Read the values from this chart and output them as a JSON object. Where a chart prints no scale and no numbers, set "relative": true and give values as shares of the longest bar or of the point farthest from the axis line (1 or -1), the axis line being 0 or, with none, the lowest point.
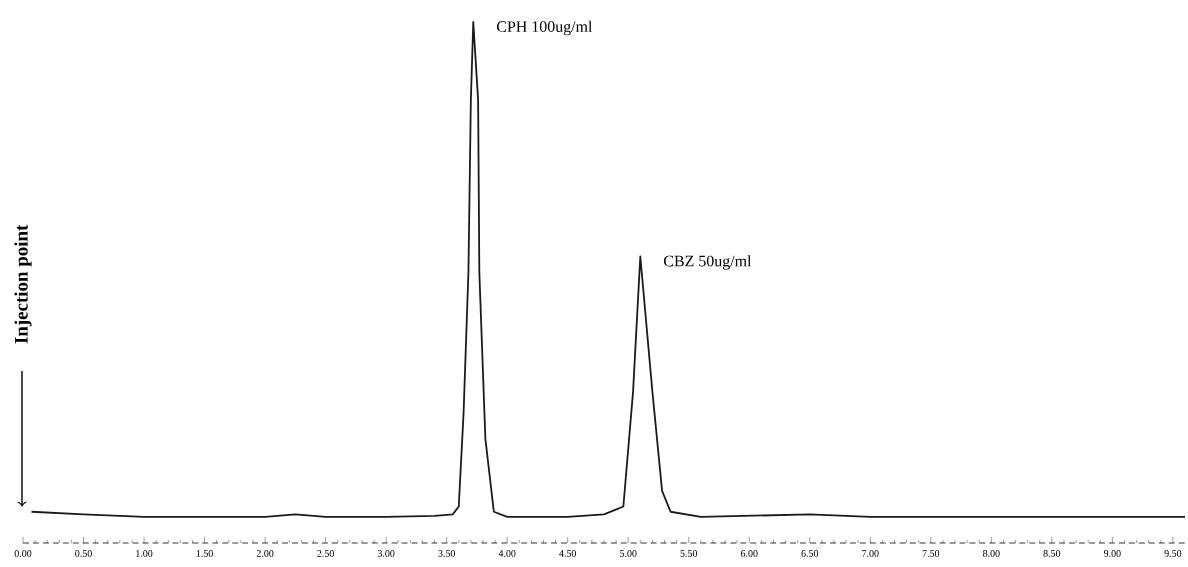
{
  "chart_data": {
    "type": "line",
    "relative": true,
    "xlim": [
      0,
      9.6
    ],
    "xticks": [
      {
        "value": 0,
        "label": "0.00"
      },
      {
        "value": 0.5,
        "label": "0.50"
      },
      {
        "value": 1,
        "label": "1.00"
      },
      {
        "value": 1.5,
        "label": "1.50"
      },
      {
        "value": 2,
        "label": "2.00"
      },
      {
        "value": 2.5,
        "label": "2.50"
      },
      {
        "value": 3,
        "label": "3.00"
      },
      {
        "value": 3.5,
        "label": "3.50"
      },
      {
        "value": 4,
        "label": "4.00"
      },
      {
        "value": 4.5,
        "label": "4.50"
      },
      {
        "value": 5,
        "label": "5.00"
      },
      {
        "value": 5.5,
        "label": "5.50"
      },
      {
        "value": 6,
        "label": "6.00"
      },
      {
        "value": 6.5,
        "label": "6.50"
      },
      {
        "value": 7,
        "label": "7.00"
      },
      {
        "value": 7.5,
        "label": "7.50"
      },
      {
        "value": 8,
        "label": "8.00"
      },
      {
        "value": 8.5,
        "label": "8.50"
      },
      {
        "value": 9,
        "label": "9.00"
      },
      {
        "value": 9.5,
        "label": "9.50"
      }
    ],
    "x": [
      0.07,
      0.5,
      1.0,
      2.0,
      2.25,
      2.5,
      3.0,
      3.4,
      3.55,
      3.6,
      3.64,
      3.68,
      3.7,
      3.72,
      3.76,
      3.77,
      3.82,
      3.89,
      4.0,
      4.5,
      4.8,
      4.96,
      5.04,
      5.1,
      5.2,
      5.28,
      5.35,
      5.6,
      6.5,
      7.0,
      8.0,
      9.0,
      9.6
    ],
    "series": [
      {
        "color": "#1a1a1a",
        "values": [
          0.06,
          0.055,
          0.05,
          0.05,
          0.055,
          0.05,
          0.05,
          0.052,
          0.055,
          0.07,
          0.25,
          0.52,
          0.85,
          1.0,
          0.85,
          0.52,
          0.2,
          0.06,
          0.05,
          0.05,
          0.055,
          0.07,
          0.29,
          0.55,
          0.29,
          0.1,
          0.06,
          0.05,
          0.055,
          0.05,
          0.05,
          0.05,
          0.05
        ]
      }
    ],
    "annotations": [
      "Injection point",
      {
        "text": "CPH 100ug/ml",
        "x": 3.72,
        "y": 1.0
      },
      {
        "text": "CBZ 50ug/ml",
        "x": 5.1,
        "y": 0.55
      }
    ]
  }
}
